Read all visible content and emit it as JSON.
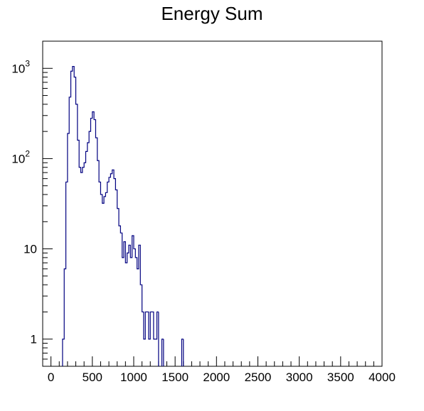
{
  "chart_data": {
    "type": "histogram",
    "title": "Energy Sum",
    "xlabel": "",
    "ylabel": "",
    "xlim": [
      -100,
      4000
    ],
    "ylim": [
      0.5,
      2000
    ],
    "yscale": "log",
    "grid": false,
    "legend": "none",
    "line_color": "#000080",
    "bin_width": 20,
    "x_ticks": [
      "0",
      "500",
      "1000",
      "1500",
      "2000",
      "2500",
      "3000",
      "3500",
      "4000"
    ],
    "y_ticks": [
      {
        "base": "1",
        "exp": ""
      },
      {
        "base": "10",
        "exp": ""
      },
      {
        "base": "10",
        "exp": "2"
      },
      {
        "base": "10",
        "exp": "3"
      }
    ],
    "series": [
      {
        "bins": [
          [
            140,
            1
          ],
          [
            160,
            6
          ],
          [
            180,
            55
          ],
          [
            200,
            190
          ],
          [
            220,
            480
          ],
          [
            240,
            930
          ],
          [
            260,
            1050
          ],
          [
            280,
            800
          ],
          [
            300,
            400
          ],
          [
            320,
            160
          ],
          [
            340,
            80
          ],
          [
            360,
            70
          ],
          [
            380,
            80
          ],
          [
            400,
            90
          ],
          [
            420,
            120
          ],
          [
            440,
            150
          ],
          [
            460,
            200
          ],
          [
            480,
            280
          ],
          [
            500,
            330
          ],
          [
            520,
            270
          ],
          [
            540,
            170
          ],
          [
            560,
            95
          ],
          [
            580,
            55
          ],
          [
            600,
            40
          ],
          [
            620,
            32
          ],
          [
            640,
            38
          ],
          [
            660,
            42
          ],
          [
            680,
            55
          ],
          [
            700,
            62
          ],
          [
            720,
            68
          ],
          [
            740,
            75
          ],
          [
            760,
            60
          ],
          [
            780,
            45
          ],
          [
            800,
            28
          ],
          [
            820,
            18
          ],
          [
            840,
            15
          ],
          [
            860,
            8
          ],
          [
            880,
            12
          ],
          [
            900,
            7
          ],
          [
            920,
            9
          ],
          [
            940,
            11
          ],
          [
            960,
            8
          ],
          [
            980,
            14
          ],
          [
            1000,
            10
          ],
          [
            1020,
            8
          ],
          [
            1040,
            6
          ],
          [
            1060,
            11
          ],
          [
            1080,
            4
          ],
          [
            1100,
            2
          ],
          [
            1120,
            1
          ],
          [
            1140,
            2
          ],
          [
            1160,
            2
          ],
          [
            1180,
            1
          ],
          [
            1200,
            2
          ],
          [
            1220,
            2
          ],
          [
            1240,
            1
          ],
          [
            1260,
            1
          ],
          [
            1280,
            2
          ],
          [
            1300,
            0
          ],
          [
            1320,
            0
          ],
          [
            1340,
            1
          ],
          [
            1580,
            1
          ]
        ]
      }
    ]
  }
}
